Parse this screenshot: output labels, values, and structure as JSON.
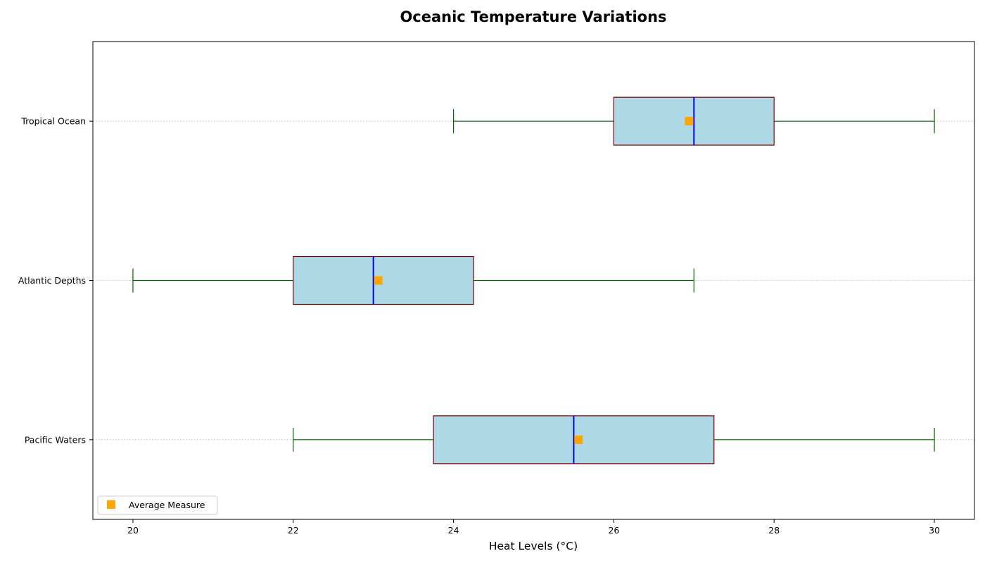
{
  "chart_data": {
    "type": "boxplot",
    "orientation": "horizontal",
    "title": "Oceanic Temperature Variations",
    "xlabel": "Heat Levels (°C)",
    "ylabel": "",
    "xlim": [
      19.5,
      30.5
    ],
    "xticks": [
      20,
      22,
      24,
      26,
      28,
      30
    ],
    "grid": "y-axis dotted",
    "categories": [
      "Pacific Waters",
      "Atlantic Depths",
      "Tropical Ocean"
    ],
    "boxes": [
      {
        "label": "Pacific Waters",
        "whisker_low": 22,
        "q1": 23.75,
        "median": 25.5,
        "q3": 27.25,
        "whisker_high": 30,
        "mean": 25.56
      },
      {
        "label": "Atlantic Depths",
        "whisker_low": 20,
        "q1": 22,
        "median": 23,
        "q3": 24.25,
        "whisker_high": 27,
        "mean": 23.06
      },
      {
        "label": "Tropical Ocean",
        "whisker_low": 24,
        "q1": 26,
        "median": 27,
        "q3": 28,
        "whisker_high": 30,
        "mean": 26.94
      }
    ],
    "legend": {
      "placement": "lower-left",
      "entries": [
        "Average Measure"
      ]
    },
    "colors": {
      "box_fill": "#add8e6",
      "box_edge": "#800000",
      "whisker": "#006400",
      "median": "#0000ff",
      "mean_marker": "#ffa500"
    }
  }
}
